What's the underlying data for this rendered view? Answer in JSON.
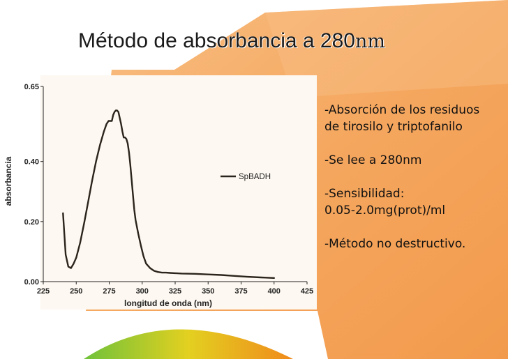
{
  "slide": {
    "title_main": "Método de absorbancia a 280",
    "title_unit": "nm",
    "bullets": [
      [
        "-Absorción de los residuos",
        "de tirosilo y triptofanilo"
      ],
      [
        "-Se lee a 280nm"
      ],
      [
        "-Sensibilidad:",
        "0.05-2.0mg(prot)/ml"
      ],
      [
        "-Método no destructivo."
      ]
    ]
  },
  "colors": {
    "orange_panel": "#f5a75f",
    "orange_light": "#f8bf84",
    "plot_background": "#fdf8f1",
    "curve": "#2a241c"
  },
  "chart_data": {
    "type": "line",
    "title": "",
    "xlabel": "longitud de onda (nm)",
    "ylabel": "absorbancia",
    "xlim": [
      225,
      425
    ],
    "ylim": [
      0,
      0.65
    ],
    "xticks": [
      225,
      250,
      275,
      300,
      325,
      350,
      375,
      400,
      425
    ],
    "xtick_labels": [
      "225",
      "250",
      "275",
      "300",
      "325",
      "350",
      "375",
      "400",
      "425"
    ],
    "yticks": [
      0,
      0.2,
      0.4,
      0.65
    ],
    "ytick_labels": [
      "0.00",
      "0.20",
      "0.40",
      "0.65"
    ],
    "grid": false,
    "legend_position": "upper-right",
    "series": [
      {
        "name": "SpBADH",
        "x": [
          240,
          242,
          244,
          246,
          248,
          250,
          253,
          256,
          259,
          262,
          265,
          268,
          271,
          273,
          274.5,
          276,
          277,
          278,
          279,
          280,
          281,
          282,
          283,
          284,
          285,
          286,
          287,
          288,
          289,
          290,
          291,
          292,
          293,
          294,
          295,
          297,
          299,
          301,
          303,
          306,
          309,
          312,
          315,
          318,
          321,
          325,
          330,
          340,
          350,
          360,
          370,
          380,
          390,
          400
        ],
        "y": [
          0.228,
          0.09,
          0.05,
          0.045,
          0.06,
          0.08,
          0.13,
          0.195,
          0.265,
          0.335,
          0.4,
          0.455,
          0.5,
          0.525,
          0.535,
          0.535,
          0.535,
          0.555,
          0.565,
          0.57,
          0.57,
          0.565,
          0.545,
          0.525,
          0.5,
          0.48,
          0.48,
          0.475,
          0.46,
          0.43,
          0.39,
          0.34,
          0.29,
          0.24,
          0.205,
          0.16,
          0.12,
          0.085,
          0.06,
          0.045,
          0.036,
          0.032,
          0.03,
          0.03,
          0.029,
          0.028,
          0.027,
          0.026,
          0.024,
          0.022,
          0.019,
          0.016,
          0.014,
          0.012
        ]
      }
    ]
  }
}
